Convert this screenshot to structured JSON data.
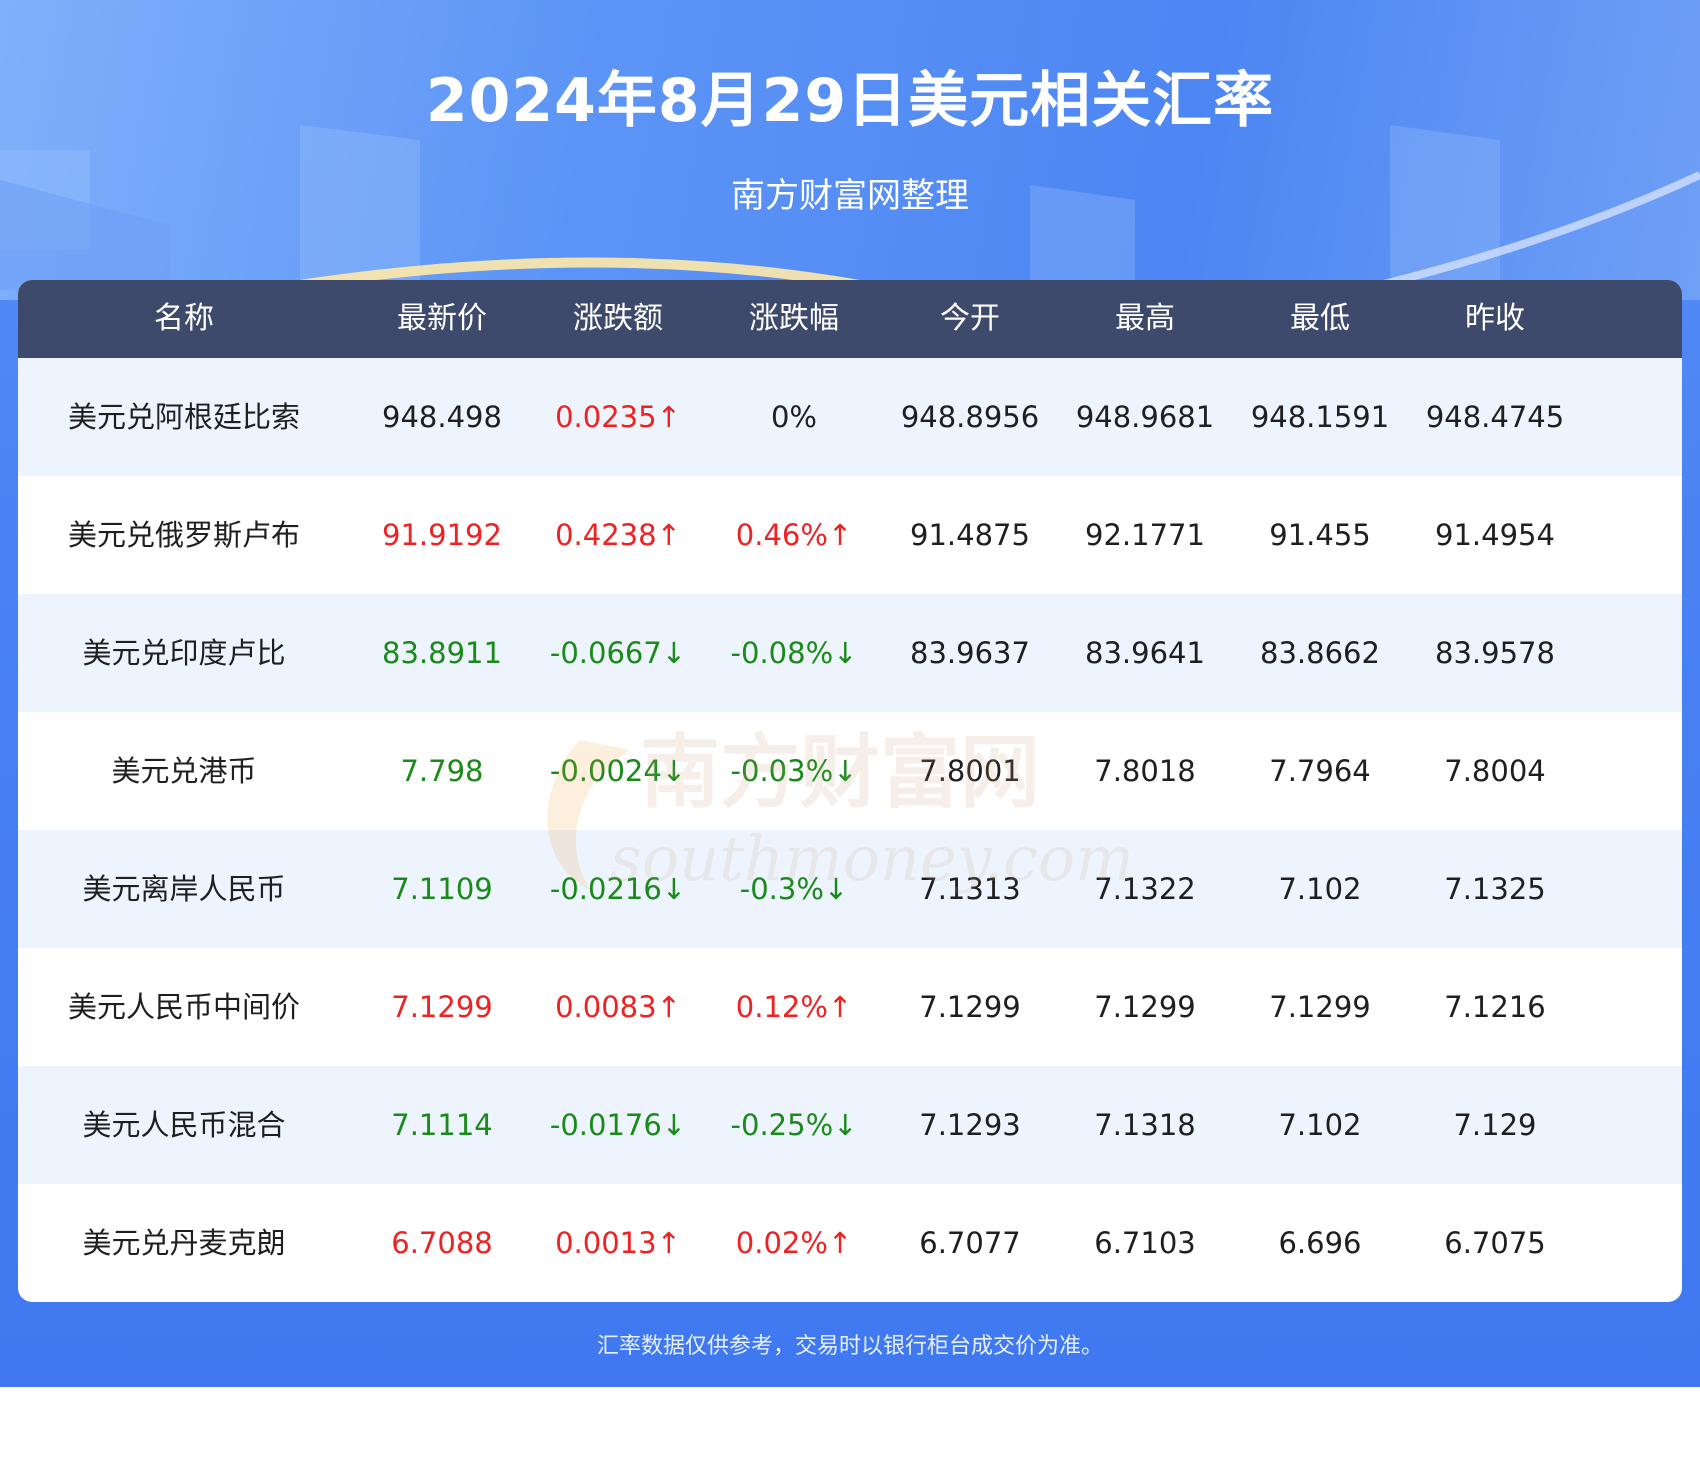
{
  "header": {
    "title": "2024年8月29日美元相关汇率",
    "subtitle": "南方财富网整理"
  },
  "table": {
    "columns": [
      "名称",
      "最新价",
      "涨跌额",
      "涨跌幅",
      "今开",
      "最高",
      "最低",
      "昨收"
    ],
    "rows": [
      {
        "name": "美元兑阿根廷比索",
        "latest": "948.498",
        "change": "0.0235↑",
        "pct": "0%",
        "open": "948.8956",
        "high": "948.9681",
        "low": "948.1591",
        "prev": "948.4745",
        "trend": "flat",
        "change_trend": "up",
        "pct_trend": "flat"
      },
      {
        "name": "美元兑俄罗斯卢布",
        "latest": "91.9192",
        "change": "0.4238↑",
        "pct": "0.46%↑",
        "open": "91.4875",
        "high": "92.1771",
        "low": "91.455",
        "prev": "91.4954",
        "trend": "up",
        "change_trend": "up",
        "pct_trend": "up"
      },
      {
        "name": "美元兑印度卢比",
        "latest": "83.8911",
        "change": "-0.0667↓",
        "pct": "-0.08%↓",
        "open": "83.9637",
        "high": "83.9641",
        "low": "83.8662",
        "prev": "83.9578",
        "trend": "down",
        "change_trend": "down",
        "pct_trend": "down"
      },
      {
        "name": "美元兑港币",
        "latest": "7.798",
        "change": "-0.0024↓",
        "pct": "-0.03%↓",
        "open": "7.8001",
        "high": "7.8018",
        "low": "7.7964",
        "prev": "7.8004",
        "trend": "down",
        "change_trend": "down",
        "pct_trend": "down"
      },
      {
        "name": "美元离岸人民币",
        "latest": "7.1109",
        "change": "-0.0216↓",
        "pct": "-0.3%↓",
        "open": "7.1313",
        "high": "7.1322",
        "low": "7.102",
        "prev": "7.1325",
        "trend": "down",
        "change_trend": "down",
        "pct_trend": "down"
      },
      {
        "name": "美元人民币中间价",
        "latest": "7.1299",
        "change": "0.0083↑",
        "pct": "0.12%↑",
        "open": "7.1299",
        "high": "7.1299",
        "low": "7.1299",
        "prev": "7.1216",
        "trend": "up",
        "change_trend": "up",
        "pct_trend": "up"
      },
      {
        "name": "美元人民币混合",
        "latest": "7.1114",
        "change": "-0.0176↓",
        "pct": "-0.25%↓",
        "open": "7.1293",
        "high": "7.1318",
        "low": "7.102",
        "prev": "7.129",
        "trend": "down",
        "change_trend": "down",
        "pct_trend": "down"
      },
      {
        "name": "美元兑丹麦克朗",
        "latest": "6.7088",
        "change": "0.0013↑",
        "pct": "0.02%↑",
        "open": "6.7077",
        "high": "6.7103",
        "low": "6.696",
        "prev": "6.7075",
        "trend": "up",
        "change_trend": "up",
        "pct_trend": "up"
      }
    ]
  },
  "watermark": {
    "line1": "南方财富网",
    "line2": "southmoney.com"
  },
  "footer": {
    "note": "汇率数据仅供参考，交易时以银行柜台成交价为准。"
  },
  "colors": {
    "header_bg": "#3e4a6b",
    "up": "#ee2222",
    "down": "#1a8a1a",
    "row_alt": "#eef4fe",
    "poster_blue": "#4a82f4"
  }
}
